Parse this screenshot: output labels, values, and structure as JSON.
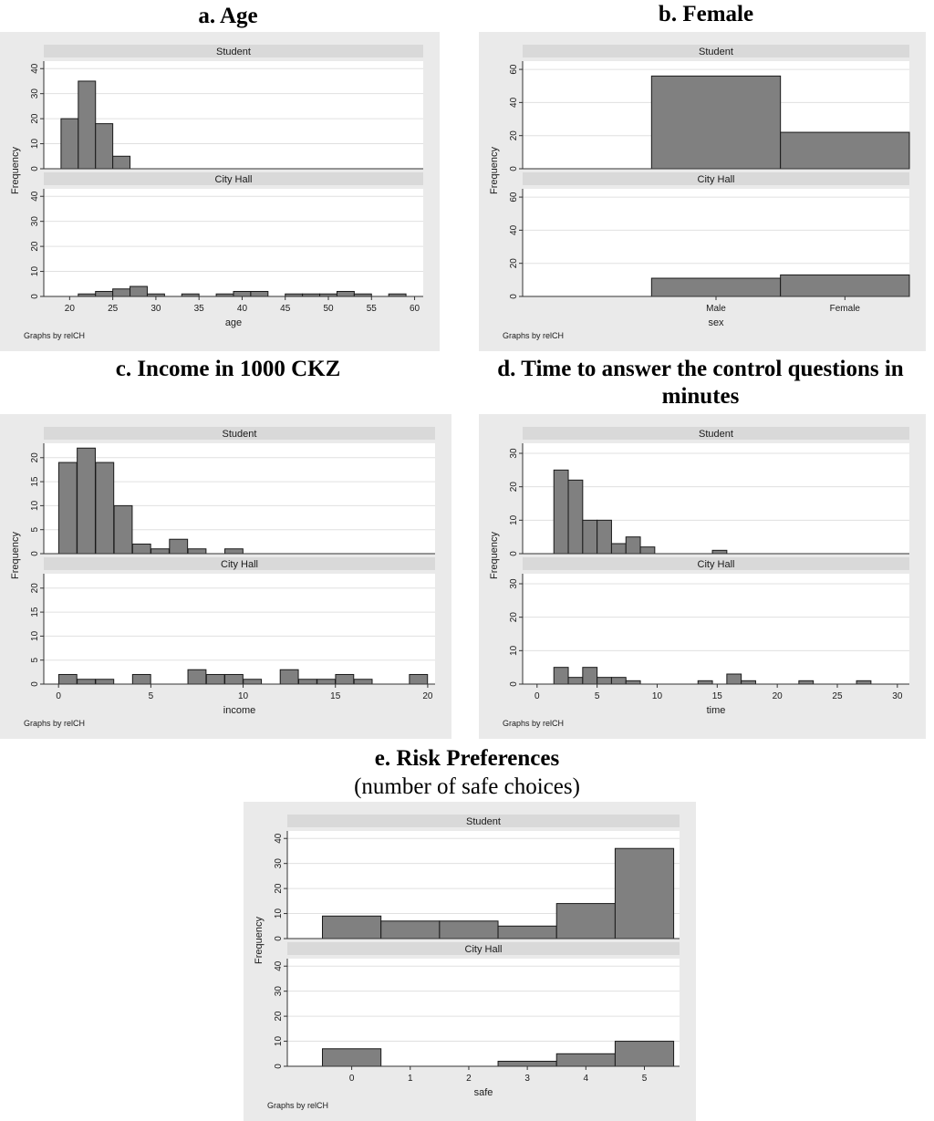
{
  "colors": {
    "panel_bg": "#eaeaea",
    "plot_bg": "#ffffff",
    "strip_bg": "#d9d9d9",
    "bar_fill": "#808080",
    "bar_stroke": "#1a1a1a",
    "grid": "#e0e0e0",
    "axis": "#333333"
  },
  "figures": [
    {
      "title": "a. Age"
    },
    {
      "title": "b. Female"
    },
    {
      "title": "c. Income in 1000 CKZ"
    },
    {
      "title": "d. Time to answer the control questions in minutes"
    },
    {
      "title": "e. Risk Preferences",
      "subtitle": "(number of safe choices)"
    }
  ],
  "chart_data": [
    {
      "id": "age",
      "type": "bar",
      "title": "a. Age",
      "xlabel": "age",
      "ylabel": "Frequency",
      "note": "Graphs by relCH",
      "xlim": [
        17,
        61
      ],
      "ylim": [
        0,
        43
      ],
      "xticks": [
        20,
        25,
        30,
        35,
        40,
        45,
        50,
        55,
        60
      ],
      "yticks": [
        0,
        10,
        20,
        30,
        40
      ],
      "bin_width": 2,
      "panels": [
        {
          "label": "Student",
          "bins": [
            [
              20,
              20
            ],
            [
              22,
              35
            ],
            [
              24,
              18
            ],
            [
              26,
              5
            ]
          ]
        },
        {
          "label": "City Hall",
          "bins": [
            [
              22,
              1
            ],
            [
              24,
              2
            ],
            [
              26,
              3
            ],
            [
              28,
              4
            ],
            [
              30,
              1
            ],
            [
              34,
              1
            ],
            [
              38,
              1
            ],
            [
              40,
              2
            ],
            [
              42,
              2
            ],
            [
              46,
              1
            ],
            [
              48,
              1
            ],
            [
              50,
              1
            ],
            [
              52,
              2
            ],
            [
              54,
              1
            ],
            [
              58,
              1
            ]
          ]
        }
      ]
    },
    {
      "id": "female",
      "type": "bar",
      "title": "b. Female",
      "xlabel": "sex",
      "ylabel": "Frequency",
      "note": "Graphs by relCH",
      "xlim": [
        -1.5,
        1.5
      ],
      "ylim": [
        0,
        65
      ],
      "yticks": [
        0,
        20,
        40,
        60
      ],
      "xticklabels": [
        [
          0,
          "Male"
        ],
        [
          1,
          "Female"
        ]
      ],
      "bin_width": 1,
      "panels": [
        {
          "label": "Student",
          "bins": [
            [
              0,
              56
            ],
            [
              1,
              22
            ]
          ]
        },
        {
          "label": "City Hall",
          "bins": [
            [
              0,
              11
            ],
            [
              1,
              13
            ]
          ]
        }
      ]
    },
    {
      "id": "income",
      "type": "bar",
      "title": "c. Income in 1000 CKZ",
      "xlabel": "income",
      "ylabel": "Frequency",
      "note": "Graphs by relCH",
      "xlim": [
        -0.8,
        20.4
      ],
      "ylim": [
        0,
        23
      ],
      "xticks": [
        0,
        5,
        10,
        15,
        20
      ],
      "yticks": [
        0,
        5,
        10,
        15,
        20
      ],
      "bin_width": 0.98,
      "panels": [
        {
          "label": "Student",
          "bins": [
            [
              0.5,
              19
            ],
            [
              1.5,
              22
            ],
            [
              2.5,
              19
            ],
            [
              3.5,
              10
            ],
            [
              4.5,
              2
            ],
            [
              5.5,
              1
            ],
            [
              6.5,
              3
            ],
            [
              7.5,
              1
            ],
            [
              9.5,
              1
            ]
          ]
        },
        {
          "label": "City Hall",
          "bins": [
            [
              0.5,
              2
            ],
            [
              1.5,
              1
            ],
            [
              2.5,
              1
            ],
            [
              4.5,
              2
            ],
            [
              7.5,
              3
            ],
            [
              8.5,
              2
            ],
            [
              9.5,
              2
            ],
            [
              10.5,
              1
            ],
            [
              12.5,
              3
            ],
            [
              13.5,
              1
            ],
            [
              14.5,
              1
            ],
            [
              15.5,
              2
            ],
            [
              16.5,
              1
            ],
            [
              19.5,
              2
            ]
          ]
        }
      ]
    },
    {
      "id": "time",
      "type": "bar",
      "title": "d. Time to answer the control questions in minutes",
      "xlabel": "time",
      "ylabel": "Frequency",
      "note": "Graphs by relCH",
      "xlim": [
        -1.2,
        31
      ],
      "ylim": [
        0,
        33
      ],
      "xticks": [
        0,
        5,
        10,
        15,
        20,
        25,
        30
      ],
      "yticks": [
        0,
        10,
        20,
        30
      ],
      "bin_width": 1.2,
      "panels": [
        {
          "label": "Student",
          "bins": [
            [
              2,
              25
            ],
            [
              3.2,
              22
            ],
            [
              4.4,
              10
            ],
            [
              5.6,
              10
            ],
            [
              6.8,
              3
            ],
            [
              8,
              5
            ],
            [
              9.2,
              2
            ],
            [
              15.2,
              1
            ]
          ]
        },
        {
          "label": "City Hall",
          "bins": [
            [
              2,
              5
            ],
            [
              3.2,
              2
            ],
            [
              4.4,
              5
            ],
            [
              5.6,
              2
            ],
            [
              6.8,
              2
            ],
            [
              8,
              1
            ],
            [
              14,
              1
            ],
            [
              16.4,
              3
            ],
            [
              17.6,
              1
            ],
            [
              22.4,
              1
            ],
            [
              27.2,
              1
            ]
          ]
        }
      ]
    },
    {
      "id": "safe",
      "type": "bar",
      "title": "e. Risk Preferences (number of safe choices)",
      "xlabel": "safe",
      "ylabel": "Frequency",
      "note": "Graphs by relCH",
      "xlim": [
        -1.1,
        5.6
      ],
      "ylim": [
        0,
        43
      ],
      "xticks": [
        0,
        1,
        2,
        3,
        4,
        5
      ],
      "yticks": [
        0,
        10,
        20,
        30,
        40
      ],
      "bin_width": 1,
      "panels": [
        {
          "label": "Student",
          "bins": [
            [
              0,
              9
            ],
            [
              1,
              7
            ],
            [
              2,
              7
            ],
            [
              3,
              5
            ],
            [
              4,
              14
            ],
            [
              5,
              36
            ]
          ]
        },
        {
          "label": "City Hall",
          "bins": [
            [
              0,
              7
            ],
            [
              3,
              2
            ],
            [
              4,
              5
            ],
            [
              5,
              10
            ]
          ]
        }
      ]
    }
  ]
}
